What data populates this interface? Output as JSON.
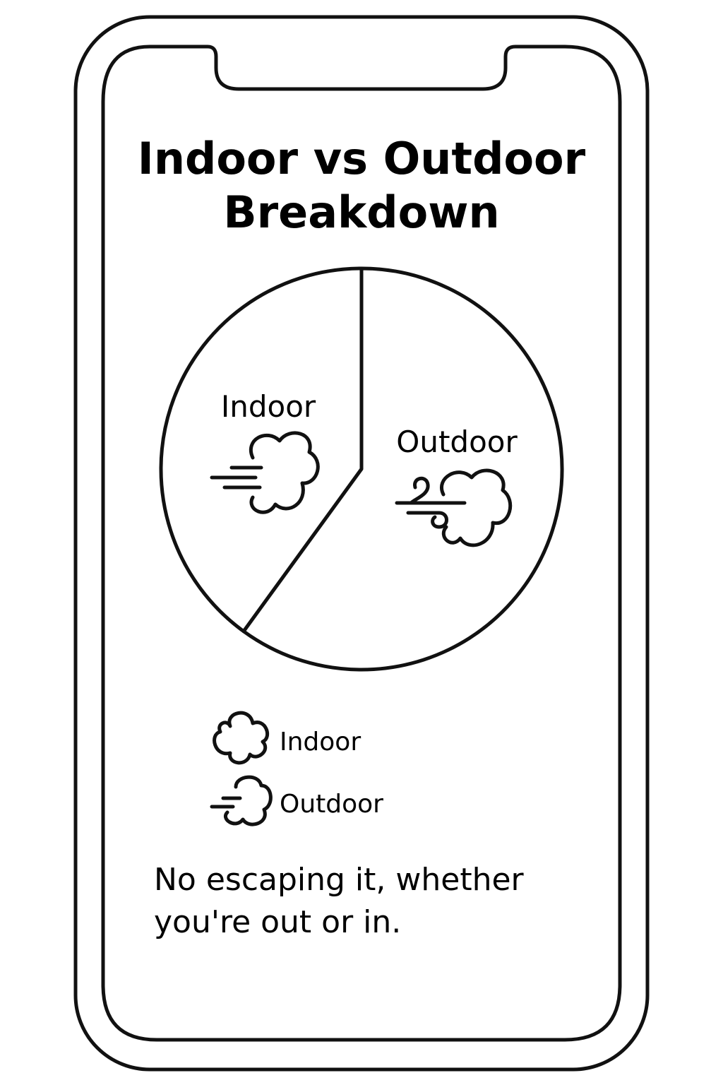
{
  "chart_data": {
    "type": "pie",
    "title": "Indoor vs Outdoor Breakdown",
    "categories": [
      "Indoor",
      "Outdoor"
    ],
    "values": [
      40,
      60
    ],
    "slice_labels": [
      "Indoor",
      "Outdoor"
    ],
    "legend": {
      "entries": [
        {
          "label": "Indoor",
          "icon": "cloud-icon"
        },
        {
          "label": "Outdoor",
          "icon": "wind-cloud-icon"
        }
      ],
      "placement": "bottom"
    },
    "slice_icons": [
      "wind-cloud-icon",
      "wind-cloud-icon"
    ],
    "colors": {
      "stroke": "#111111",
      "fill": "#ffffff",
      "background": "#ffffff"
    }
  },
  "title_lines": [
    "Indoor vs Outdoor",
    "Breakdown"
  ],
  "caption_lines": [
    "No escaping it, whether",
    "you're out or in."
  ],
  "device": "phone-frame"
}
